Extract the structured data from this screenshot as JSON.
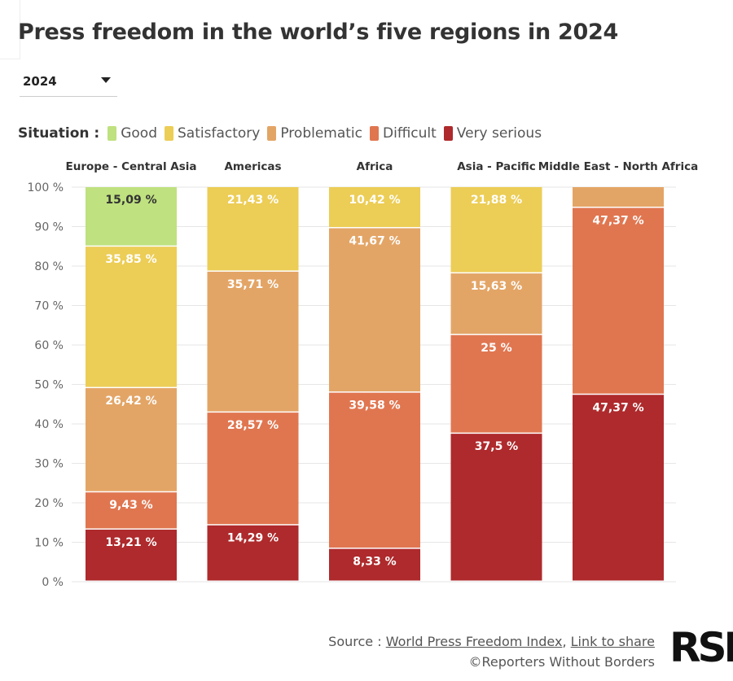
{
  "title": "Press freedom in the world’s five regions in 2024",
  "year_select": {
    "value": "2024"
  },
  "legend": {
    "title": "Situation :",
    "items": [
      {
        "label": "Good",
        "color": "#bfe17f"
      },
      {
        "label": "Satisfactory",
        "color": "#eccd56"
      },
      {
        "label": "Problematic",
        "color": "#e3a566"
      },
      {
        "label": "Difficult",
        "color": "#e07650"
      },
      {
        "label": "Very serious",
        "color": "#ae2a2c"
      }
    ]
  },
  "chart_data": {
    "type": "bar",
    "stacked": true,
    "categories": [
      "Europe - Central Asia",
      "Americas",
      "Africa",
      "Asia - Pacific",
      "Middle East - North Africa"
    ],
    "series": [
      {
        "name": "Very serious",
        "color": "#ae2a2c",
        "values": [
          13.21,
          14.29,
          8.33,
          37.5,
          47.37
        ],
        "labels": [
          "13,21 %",
          "14,29 %",
          "8,33 %",
          "37,5 %",
          "47,37 %"
        ]
      },
      {
        "name": "Difficult",
        "color": "#e07650",
        "values": [
          9.43,
          28.57,
          39.58,
          25,
          47.37
        ],
        "labels": [
          "9,43 %",
          "28,57 %",
          "39,58 %",
          "25 %",
          "47,37 %"
        ]
      },
      {
        "name": "Problematic",
        "color": "#e3a566",
        "values": [
          26.42,
          35.71,
          41.67,
          15.63,
          5.26
        ],
        "labels": [
          "26,42 %",
          "35,71 %",
          "41,67 %",
          "15,63 %",
          ""
        ]
      },
      {
        "name": "Satisfactory",
        "color": "#eccd56",
        "values": [
          35.85,
          21.43,
          10.42,
          21.88,
          0
        ],
        "labels": [
          "35,85 %",
          "21,43 %",
          "10,42 %",
          "21,88 %",
          ""
        ]
      },
      {
        "name": "Good",
        "color": "#bfe17f",
        "values": [
          15.09,
          0,
          0,
          0,
          0
        ],
        "labels": [
          "15,09 %",
          "",
          "",
          "",
          ""
        ]
      }
    ],
    "ylim": [
      0,
      100
    ],
    "yticks": [
      "0 %",
      "10 %",
      "20 %",
      "30 %",
      "40 %",
      "50 %",
      "60 %",
      "70 %",
      "80 %",
      "90 %",
      "100 %"
    ],
    "grid": true,
    "legend_position": "top-left"
  },
  "footer": {
    "source_prefix": "Source :",
    "source_link": "World Press Freedom Index",
    "separator": ",",
    "share_link": "Link to share",
    "copyright": "©Reporters Without Borders"
  },
  "logo": {
    "text": "RSF"
  }
}
